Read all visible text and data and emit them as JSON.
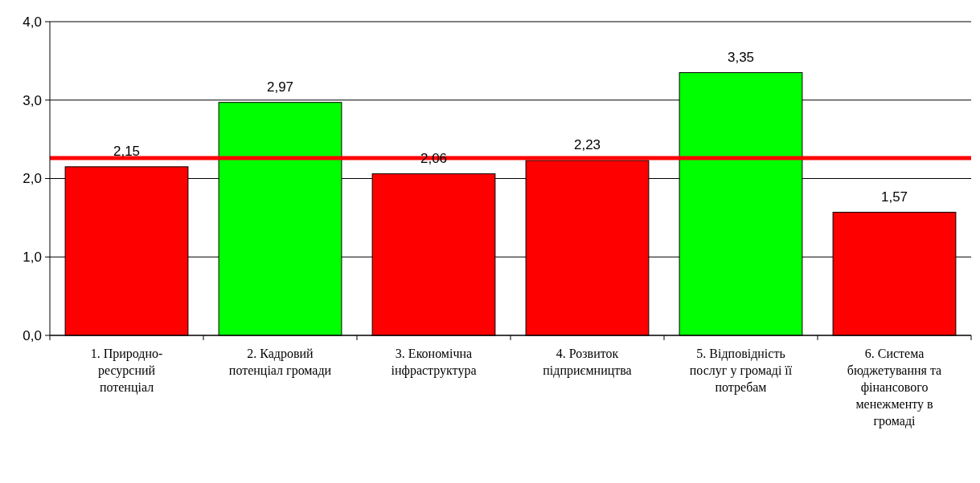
{
  "chart_data": {
    "type": "bar",
    "categories": [
      "1. Природно-ресурсний потенціал",
      "2. Кадровий потенціал громади",
      "3. Економічна інфраструктура",
      "4. Розвиток підприємництва",
      "5. Відповідність послуг у громаді її потребам",
      "6. Система бюджетування та фінансового менежменту в громаді"
    ],
    "values": [
      2.15,
      2.97,
      2.06,
      2.23,
      3.35,
      1.57
    ],
    "colors": [
      "#ff0000",
      "#00ff00",
      "#ff0000",
      "#ff0000",
      "#00ff00",
      "#ff0000"
    ],
    "value_labels": [
      "2,15",
      "2,97",
      "2,06",
      "2,23",
      "3,35",
      "1,57"
    ],
    "ylim": [
      0,
      4
    ],
    "yticks": [
      {
        "value": 0,
        "label": "0,0"
      },
      {
        "value": 1,
        "label": "1,0"
      },
      {
        "value": 2,
        "label": "2,0"
      },
      {
        "value": 3,
        "label": "3,0"
      },
      {
        "value": 4,
        "label": "4,0"
      }
    ],
    "grid": "y",
    "ref_lines": [
      {
        "axis": "y",
        "value": 2.26,
        "color": "#ff0000"
      }
    ]
  }
}
